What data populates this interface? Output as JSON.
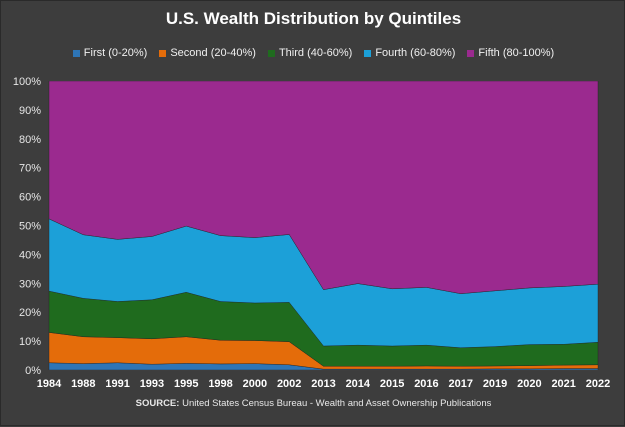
{
  "chart_data": {
    "type": "area",
    "stacked": true,
    "percent_stacked": true,
    "title": "U.S. Wealth Distribution by Quintiles",
    "categories": [
      "1984",
      "1988",
      "1991",
      "1993",
      "1995",
      "1998",
      "2000",
      "2002",
      "2013",
      "2014",
      "2015",
      "2016",
      "2017",
      "2019",
      "2020",
      "2021",
      "2022"
    ],
    "series": [
      {
        "name": "First (0-20%)",
        "color": "#2e75b6",
        "values": [
          2.5,
          2.2,
          2.5,
          2.0,
          2.3,
          2.1,
          2.2,
          1.8,
          0.3,
          0.3,
          0.3,
          0.3,
          0.3,
          0.4,
          0.4,
          0.5,
          0.5
        ]
      },
      {
        "name": "Second (20-40%)",
        "color": "#e46c0a",
        "values": [
          10.5,
          9.3,
          8.7,
          8.8,
          9.2,
          8.2,
          8.0,
          8.0,
          1.0,
          1.0,
          1.0,
          1.1,
          1.0,
          1.0,
          1.1,
          1.2,
          1.3
        ]
      },
      {
        "name": "Third (40-60%)",
        "color": "#1f6b1e",
        "values": [
          14.3,
          13.3,
          12.5,
          13.5,
          15.4,
          13.4,
          13.0,
          13.6,
          7.0,
          7.3,
          7.0,
          7.2,
          6.4,
          6.7,
          7.3,
          7.2,
          7.8
        ]
      },
      {
        "name": "Fourth (60-80%)",
        "color": "#1ca0d8",
        "values": [
          25.0,
          22.0,
          21.5,
          21.9,
          22.9,
          22.8,
          22.6,
          23.5,
          19.5,
          21.3,
          19.8,
          20.0,
          18.7,
          19.3,
          19.6,
          20.0,
          20.1
        ]
      },
      {
        "name": "Fifth (80-100%)",
        "color": "#9b2a8f",
        "values": [
          47.7,
          53.2,
          54.8,
          53.8,
          50.2,
          53.5,
          54.2,
          53.1,
          72.2,
          70.1,
          71.9,
          71.4,
          73.6,
          72.6,
          71.6,
          71.1,
          70.3
        ]
      }
    ],
    "y_ticks": [
      "0%",
      "10%",
      "20%",
      "30%",
      "40%",
      "50%",
      "60%",
      "70%",
      "80%",
      "90%",
      "100%"
    ],
    "ylim": [
      0,
      100
    ],
    "grid": true,
    "legend_position": "top",
    "background": "#3d3d3d"
  },
  "source_label": "SOURCE:",
  "source_text": "United States Census Bureau - Wealth and Asset Ownership Publications"
}
